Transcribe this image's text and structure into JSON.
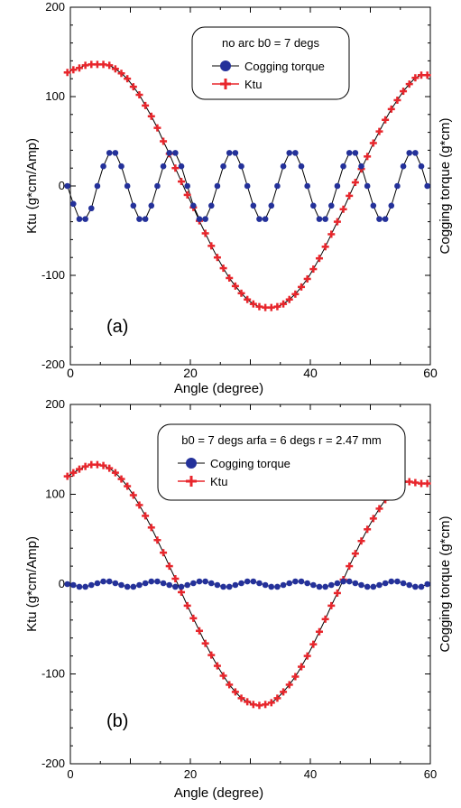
{
  "colors": {
    "cogging": "#24319a",
    "ktu": "#e8262c",
    "axis": "#000000"
  },
  "chart_data": [
    {
      "type": "line",
      "panel_label": "(a)",
      "legend_title": "no arc b0 = 7 degs",
      "legend_position": "top-right",
      "xlabel": "Angle (degree)",
      "ylabel": "Ktu (g*cm/Amp)",
      "ylabel_right": "Cogging torque (g*cm)",
      "xlim": [
        0,
        60
      ],
      "ylim": [
        -200,
        200
      ],
      "xticks": [
        "0",
        "20",
        "40",
        "60"
      ],
      "yticks": [
        "-200",
        "-100",
        "0",
        "100",
        "200"
      ],
      "grid": false,
      "series": [
        {
          "name": "Cogging torque",
          "marker": "circle",
          "x": [
            -0.5,
            0.5,
            1.5,
            2.5,
            3.5,
            4.5,
            5.5,
            6.5,
            7.5,
            8.5,
            9.5,
            10.5,
            11.5,
            12.5,
            13.5,
            14.5,
            15.5,
            16.5,
            17.5,
            18.5,
            19.5,
            20.5,
            21.5,
            22.5,
            23.5,
            24.5,
            25.5,
            26.5,
            27.5,
            28.5,
            29.5,
            30.5,
            31.5,
            32.5,
            33.5,
            34.5,
            35.5,
            36.5,
            37.5,
            38.5,
            39.5,
            40.5,
            41.5,
            42.5,
            43.5,
            44.5,
            45.5,
            46.5,
            47.5,
            48.5,
            49.5,
            50.5,
            51.5,
            52.5,
            53.5,
            54.5,
            55.5,
            56.5,
            57.5,
            58.5,
            59.5
          ],
          "values": [
            0,
            -20,
            -37,
            -37,
            -25,
            0,
            22,
            37,
            37,
            22,
            0,
            -22,
            -37,
            -37,
            -22,
            0,
            22,
            37,
            37,
            22,
            0,
            -22,
            -37,
            -37,
            -22,
            0,
            22,
            37,
            37,
            22,
            0,
            -22,
            -37,
            -37,
            -22,
            0,
            22,
            37,
            37,
            22,
            0,
            -22,
            -37,
            -37,
            -22,
            0,
            22,
            37,
            37,
            22,
            0,
            -22,
            -37,
            -37,
            -22,
            0,
            22,
            37,
            37,
            22,
            0
          ]
        },
        {
          "name": "Ktu",
          "marker": "plus",
          "x": [
            -0.5,
            0.5,
            1.5,
            2.5,
            3.5,
            4.5,
            5.5,
            6.5,
            7.5,
            8.5,
            9.5,
            10.5,
            11.5,
            12.5,
            13.5,
            14.5,
            15.5,
            16.5,
            17.5,
            18.5,
            19.5,
            20.5,
            21.5,
            22.5,
            23.5,
            24.5,
            25.5,
            26.5,
            27.5,
            28.5,
            29.5,
            30.5,
            31.5,
            32.5,
            33.5,
            34.5,
            35.5,
            36.5,
            37.5,
            38.5,
            39.5,
            40.5,
            41.5,
            42.5,
            43.5,
            44.5,
            45.5,
            46.5,
            47.5,
            48.5,
            49.5,
            50.5,
            51.5,
            52.5,
            53.5,
            54.5,
            55.5,
            56.5,
            57.5,
            58.5,
            59.5
          ],
          "values": [
            127,
            130,
            132,
            135,
            136,
            136,
            136,
            135,
            131,
            126,
            120,
            111,
            102,
            90,
            78,
            65,
            50,
            36,
            20,
            5,
            -10,
            -24,
            -39,
            -53,
            -67,
            -80,
            -92,
            -103,
            -112,
            -120,
            -127,
            -132,
            -135,
            -136,
            -136,
            -135,
            -132,
            -127,
            -121,
            -113,
            -104,
            -93,
            -81,
            -68,
            -54,
            -40,
            -26,
            -11,
            4,
            19,
            33,
            48,
            61,
            74,
            86,
            96,
            106,
            114,
            121,
            124,
            124
          ]
        }
      ]
    },
    {
      "type": "line",
      "panel_label": "(b)",
      "legend_title": "b0 = 7 degs arfa = 6 degs r = 2.47 mm",
      "legend_position": "top-right",
      "xlabel": "Angle (degree)",
      "ylabel": "Ktu (g*cm/Amp)",
      "ylabel_right": "Cogging torque (g*cm)",
      "xlim": [
        0,
        60
      ],
      "ylim": [
        -200,
        200
      ],
      "xticks": [
        "0",
        "20",
        "40",
        "60"
      ],
      "yticks": [
        "-200",
        "-100",
        "0",
        "100",
        "200"
      ],
      "grid": false,
      "series": [
        {
          "name": "Cogging torque",
          "marker": "circle",
          "x": [
            -0.5,
            0.5,
            1.5,
            2.5,
            3.5,
            4.5,
            5.5,
            6.5,
            7.5,
            8.5,
            9.5,
            10.5,
            11.5,
            12.5,
            13.5,
            14.5,
            15.5,
            16.5,
            17.5,
            18.5,
            19.5,
            20.5,
            21.5,
            22.5,
            23.5,
            24.5,
            25.5,
            26.5,
            27.5,
            28.5,
            29.5,
            30.5,
            31.5,
            32.5,
            33.5,
            34.5,
            35.5,
            36.5,
            37.5,
            38.5,
            39.5,
            40.5,
            41.5,
            42.5,
            43.5,
            44.5,
            45.5,
            46.5,
            47.5,
            48.5,
            49.5,
            50.5,
            51.5,
            52.5,
            53.5,
            54.5,
            55.5,
            56.5,
            57.5,
            58.5,
            59.5
          ],
          "values": [
            0,
            -1,
            -3,
            -3,
            -1,
            1,
            3,
            3,
            1,
            -1,
            -3,
            -3,
            -1,
            1,
            3,
            3,
            1,
            -1,
            -3,
            -3,
            -1,
            1,
            3,
            3,
            1,
            -1,
            -3,
            -3,
            -1,
            1,
            3,
            3,
            1,
            -1,
            -3,
            -3,
            -1,
            1,
            3,
            3,
            1,
            -1,
            -3,
            -3,
            -1,
            1,
            3,
            3,
            1,
            -1,
            -3,
            -3,
            -1,
            1,
            3,
            3,
            1,
            -1,
            -3,
            -3,
            0
          ]
        },
        {
          "name": "Ktu",
          "marker": "plus",
          "x": [
            -0.5,
            0.5,
            1.5,
            2.5,
            3.5,
            4.5,
            5.5,
            6.5,
            7.5,
            8.5,
            9.5,
            10.5,
            11.5,
            12.5,
            13.5,
            14.5,
            15.5,
            16.5,
            17.5,
            18.5,
            19.5,
            20.5,
            21.5,
            22.5,
            23.5,
            24.5,
            25.5,
            26.5,
            27.5,
            28.5,
            29.5,
            30.5,
            31.5,
            32.5,
            33.5,
            34.5,
            35.5,
            36.5,
            37.5,
            38.5,
            39.5,
            40.5,
            41.5,
            42.5,
            43.5,
            44.5,
            45.5,
            46.5,
            47.5,
            48.5,
            49.5,
            50.5,
            51.5,
            52.5,
            53.5,
            54.5,
            55.5,
            56.5,
            57.5,
            58.5,
            59.5
          ],
          "values": [
            120,
            124,
            128,
            131,
            133,
            133,
            132,
            129,
            124,
            117,
            109,
            99,
            88,
            76,
            63,
            49,
            35,
            20,
            6,
            -9,
            -24,
            -38,
            -52,
            -66,
            -79,
            -91,
            -102,
            -112,
            -120,
            -127,
            -131,
            -134,
            -135,
            -134,
            -132,
            -127,
            -120,
            -112,
            -103,
            -92,
            -80,
            -67,
            -53,
            -39,
            -24,
            -10,
            5,
            20,
            34,
            48,
            61,
            73,
            84,
            94,
            103,
            110,
            114,
            114,
            113,
            112,
            112
          ]
        }
      ]
    }
  ]
}
